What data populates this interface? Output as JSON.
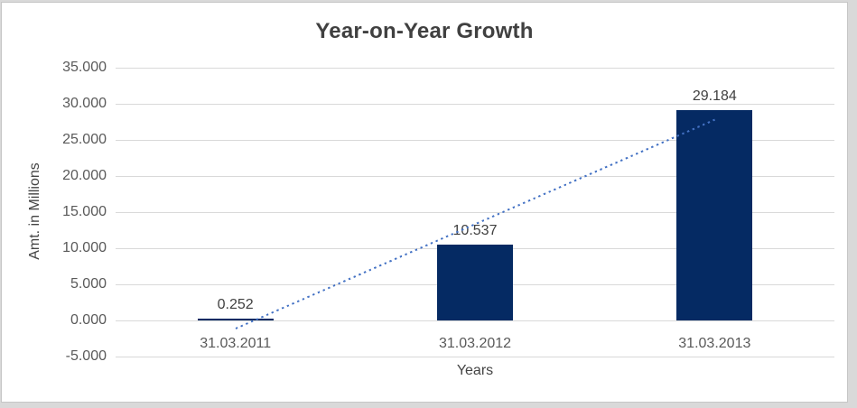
{
  "window": {
    "surround_color": "#d9d9d9",
    "card_background": "#ffffff",
    "card_border_color": "#c6c6c6"
  },
  "chart_data": {
    "type": "bar",
    "title": "Year-on-Year Growth",
    "xlabel": "Years",
    "ylabel": "Amt. in Millions",
    "categories": [
      "31.03.2011",
      "31.03.2012",
      "31.03.2013"
    ],
    "values": [
      0.252,
      10.537,
      29.184
    ],
    "data_labels": [
      "0.252",
      "10.537",
      "29.184"
    ],
    "ylim": [
      -5,
      35
    ],
    "ytick_step": 5,
    "ytick_labels": [
      "35.000",
      "30.000",
      "25.000",
      "20.000",
      "15.000",
      "10.000",
      "5.000",
      "0.000",
      "-5.000"
    ],
    "grid": true,
    "legend": "none",
    "bar_color": "#052a63",
    "gridline_color": "#d9d9d9",
    "tick_text_color": "#595959",
    "axis_title_color": "#444444",
    "title_color": "#404040",
    "data_label_color": "#404040",
    "trendline": {
      "kind": "linear",
      "style": "dotted",
      "color": "#4472c4",
      "start_value": -1.14,
      "end_value": 27.79
    }
  }
}
